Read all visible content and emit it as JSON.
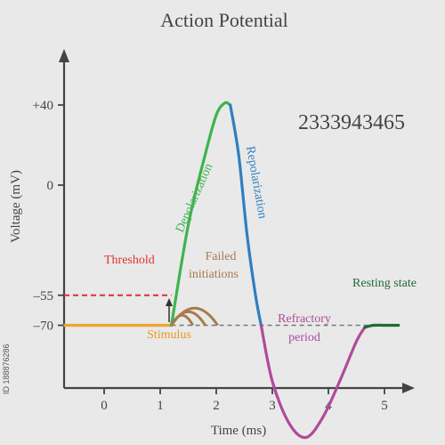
{
  "chart_data": {
    "type": "line",
    "title": "Action Potential",
    "xlabel": "Time (ms)",
    "ylabel": "Voltage (mV)",
    "xlim": [
      -0.7,
      5.4
    ],
    "ylim": [
      -140,
      60
    ],
    "x_ticks": [
      0,
      1,
      2,
      3,
      4,
      5
    ],
    "x_tick_labels": [
      "0",
      "1",
      "2",
      "3",
      "4",
      "5"
    ],
    "y_ticks": [
      40,
      0,
      -55,
      -70
    ],
    "y_tick_labels": [
      "+40",
      "0",
      "–55",
      "–70"
    ],
    "threshold": -55,
    "resting": -70,
    "stimulus_time": 1.2,
    "series": [
      {
        "name": "Resting",
        "color": "#f0a52c",
        "x": [
          -0.7,
          1.2
        ],
        "y": [
          -70,
          -70
        ]
      },
      {
        "name": "Depolarization",
        "color": "#3fb34f",
        "x": [
          1.2,
          1.5,
          1.8,
          2.0,
          2.15,
          2.25
        ],
        "y": [
          -70,
          -20,
          15,
          35,
          41,
          40
        ]
      },
      {
        "name": "Repolarization",
        "color": "#2f7fc1",
        "x": [
          2.25,
          2.4,
          2.55,
          2.7,
          2.8
        ],
        "y": [
          40,
          15,
          -25,
          -55,
          -70
        ]
      },
      {
        "name": "Refractory period",
        "color": "#b04a9c",
        "x": [
          2.8,
          3.0,
          3.3,
          3.6,
          3.9,
          4.2,
          4.5,
          4.65
        ],
        "y": [
          -70,
          -98,
          -119,
          -126,
          -116,
          -98,
          -78,
          -71
        ]
      },
      {
        "name": "Resting state",
        "color": "#1f6b35",
        "x": [
          4.65,
          4.8,
          5.0,
          5.25
        ],
        "y": [
          -71,
          -70,
          -70,
          -70
        ]
      }
    ],
    "annotations": {
      "threshold": "Threshold",
      "failed": [
        "Failed",
        "initiations"
      ],
      "stimulus": "Stimulus",
      "depolarization": "Depolarization",
      "repolarization": "Repolarization",
      "refractory": [
        "Refractory",
        "period"
      ],
      "resting": "Resting state"
    },
    "grid": false
  },
  "overlay_number": "2333943465",
  "side_id": "ID 188876286",
  "colors": {
    "axis": "#444444",
    "threshold": "#e03030",
    "failed": "#a87a4d",
    "stimulus_text": "#e89a1a",
    "resting_dash": "#777777"
  }
}
